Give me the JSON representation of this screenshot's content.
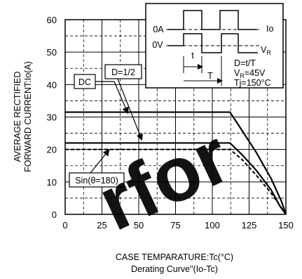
{
  "chart_data": {
    "type": "line",
    "title": "",
    "xlabel": "CASE TEMPARATURE:Tc(°C)",
    "xlabel2": "Derating Curve\"(Io-Tc)",
    "ylabel_line1": "AVERAGE RECTIFIED",
    "ylabel_line2": "FORWARD CURRENT:Io(A)",
    "xlim": [
      0,
      150
    ],
    "ylim": [
      0,
      60
    ],
    "xticks": [
      0,
      25,
      50,
      75,
      100,
      125,
      150
    ],
    "yticks": [
      0,
      10,
      20,
      30,
      40,
      50,
      60
    ],
    "grid": true,
    "series": [
      {
        "name": "DC",
        "style": "solid",
        "x": [
          0,
          112,
          120,
          130,
          140,
          147,
          150
        ],
        "y": [
          31.5,
          31.5,
          26,
          19,
          11,
          4,
          0
        ]
      },
      {
        "name": "D=1/2",
        "style": "solid",
        "x": [
          0,
          112,
          120,
          130,
          140,
          146,
          150
        ],
        "y": [
          22,
          22,
          18.5,
          13.5,
          7.5,
          2.5,
          0
        ]
      },
      {
        "name": "Sin(θ=180)",
        "style": "dashed",
        "x": [
          0,
          112,
          120,
          130,
          140,
          147,
          150
        ],
        "y": [
          20,
          20,
          17,
          12,
          6.5,
          2,
          0
        ]
      }
    ],
    "annotations": {
      "dc": "DC",
      "half": "D=1/2",
      "sin": "Sin(θ=180)"
    },
    "inset": {
      "zero_current": "0A",
      "zero_voltage": "0V",
      "io": "Io",
      "vr": "V",
      "vr_sub": "R",
      "t": "t",
      "period": "T",
      "duty": "D=t/T",
      "vr_value_prefix": "V",
      "vr_value_sub": "R",
      "vr_value": "=45V",
      "tj": "Tj=150°C"
    }
  },
  "watermark": "rfor"
}
